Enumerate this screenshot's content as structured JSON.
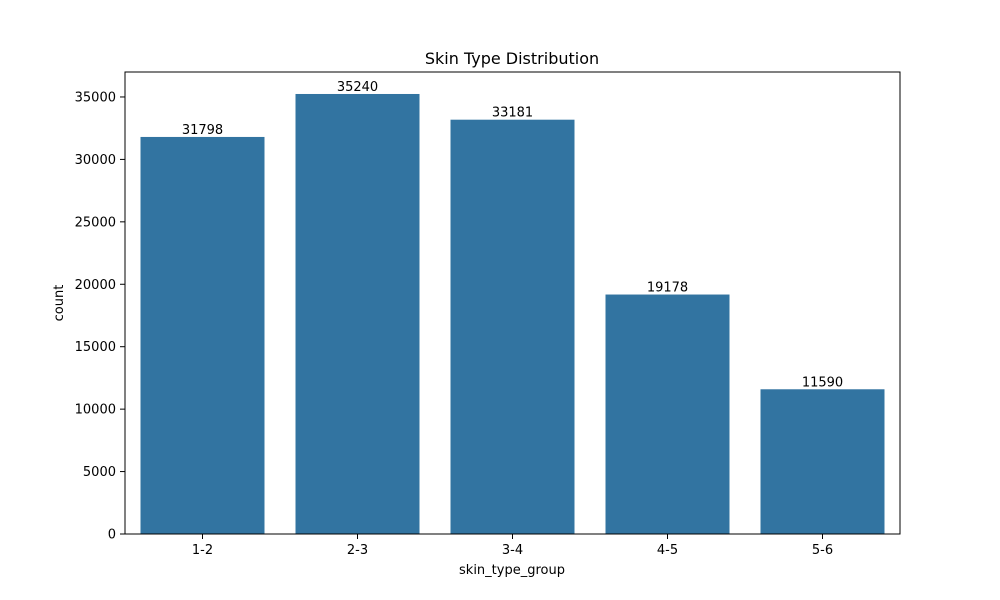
{
  "chart_data": {
    "type": "bar",
    "title": "Skin Type Distribution",
    "xlabel": "skin_type_group",
    "ylabel": "count",
    "categories": [
      "1-2",
      "2-3",
      "3-4",
      "4-5",
      "5-6"
    ],
    "values": [
      31798,
      35240,
      33181,
      19178,
      11590
    ],
    "data_labels": [
      "31798",
      "35240",
      "33181",
      "19178",
      "11590"
    ],
    "yticks": [
      0,
      5000,
      10000,
      15000,
      20000,
      25000,
      30000,
      35000
    ],
    "ylim": [
      0,
      37000
    ],
    "bar_color": "#3274a1",
    "grid": false,
    "legend": "none"
  }
}
